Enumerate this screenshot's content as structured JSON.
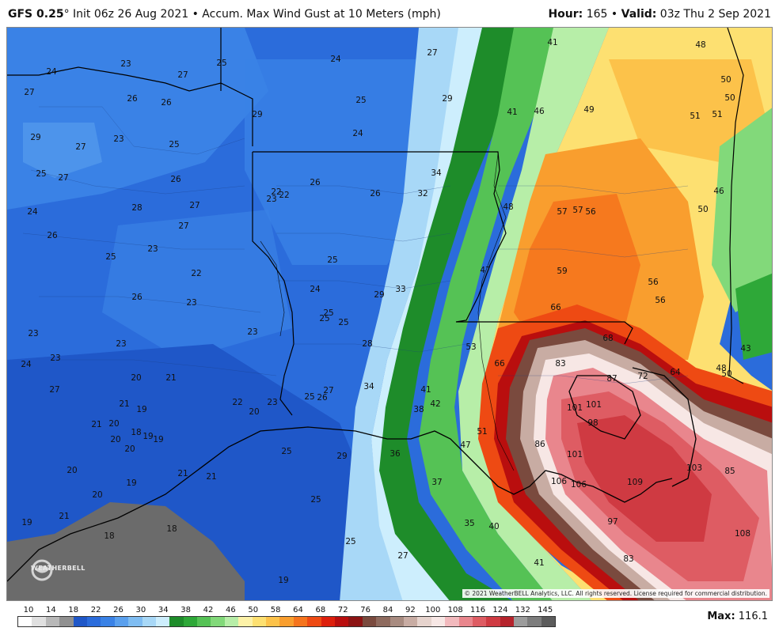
{
  "header": {
    "model": "GFS 0.25",
    "degree": "°",
    "description": " Init 06z 26 Aug 2021 • Accum. Max Wind Gust at 10 Meters (mph)",
    "hour_label": "Hour:",
    "hour_value": " 165 • ",
    "valid_label": "Valid:",
    "valid_value": " 03z Thu 2 Sep 2021"
  },
  "copyright": "© 2021 WeatherBELL Analytics, LLC. All rights reserved. License required for commercial distribution.",
  "logo_text": "WEATHERBELL",
  "max": {
    "label": "Max:",
    "value": "116.1"
  },
  "legend": {
    "labels": [
      "10",
      "14",
      "18",
      "22",
      "26",
      "30",
      "34",
      "38",
      "42",
      "46",
      "50",
      "58",
      "64",
      "68",
      "72",
      "76",
      "84",
      "92",
      "100",
      "108",
      "116",
      "124",
      "132",
      "145"
    ],
    "colors": [
      "#ffffff",
      "#e0e0e0",
      "#b8b8b8",
      "#909090",
      "#1f57c8",
      "#2b6cdb",
      "#3a82e6",
      "#5aa0ee",
      "#7fbdf2",
      "#a8d8f7",
      "#cdeefd",
      "#1e8c2a",
      "#2ea838",
      "#55c255",
      "#82d97a",
      "#b7eea8",
      "#fdf2a8",
      "#fde071",
      "#fcc24a",
      "#f99e2e",
      "#f5741d",
      "#ee4a13",
      "#dd1f0c",
      "#b90e0e",
      "#8c1414",
      "#7a4a3e",
      "#8e6a5e",
      "#a88b80",
      "#c8aca3",
      "#e6d3cd",
      "#f7e7e5",
      "#f2b9bd",
      "#e9868d",
      "#de5c63",
      "#cf3a42",
      "#b5232c",
      "#9c9c9c",
      "#7d7d7d",
      "#5c5c5c"
    ]
  },
  "map": {
    "values": [
      {
        "v": "24"
      },
      {
        "v": "23"
      },
      {
        "v": "27"
      },
      {
        "v": "25"
      },
      {
        "v": "24"
      },
      {
        "v": "27"
      },
      {
        "v": "41"
      },
      {
        "v": "48"
      },
      {
        "v": "27"
      },
      {
        "v": "26"
      },
      {
        "v": "26"
      },
      {
        "v": "29"
      },
      {
        "v": "25"
      },
      {
        "v": "29"
      },
      {
        "v": "50"
      },
      {
        "v": "50"
      },
      {
        "v": "41"
      },
      {
        "v": "46"
      },
      {
        "v": "49"
      },
      {
        "v": "51"
      },
      {
        "v": "51"
      },
      {
        "v": "29"
      },
      {
        "v": "27"
      },
      {
        "v": "23"
      },
      {
        "v": "25"
      },
      {
        "v": "24"
      },
      {
        "v": "25"
      },
      {
        "v": "27"
      },
      {
        "v": "26"
      },
      {
        "v": "34"
      },
      {
        "v": "22"
      },
      {
        "v": "22"
      },
      {
        "v": "26"
      },
      {
        "v": "26"
      },
      {
        "v": "32"
      },
      {
        "v": "23"
      },
      {
        "v": "46"
      },
      {
        "v": "24"
      },
      {
        "v": "28"
      },
      {
        "v": "27"
      },
      {
        "v": "48"
      },
      {
        "v": "57"
      },
      {
        "v": "57"
      },
      {
        "v": "56"
      },
      {
        "v": "50"
      },
      {
        "v": "26"
      },
      {
        "v": "27"
      },
      {
        "v": "25"
      },
      {
        "v": "23"
      },
      {
        "v": "25"
      },
      {
        "v": "47"
      },
      {
        "v": "59"
      },
      {
        "v": "22"
      },
      {
        "v": "56"
      },
      {
        "v": "26"
      },
      {
        "v": "24"
      },
      {
        "v": "29"
      },
      {
        "v": "33"
      },
      {
        "v": "23"
      },
      {
        "v": "56"
      },
      {
        "v": "25"
      },
      {
        "v": "25"
      },
      {
        "v": "66"
      },
      {
        "v": "23"
      },
      {
        "v": "23"
      },
      {
        "v": "25"
      },
      {
        "v": "68"
      },
      {
        "v": "23"
      },
      {
        "v": "28"
      },
      {
        "v": "53"
      },
      {
        "v": "43"
      },
      {
        "v": "24"
      },
      {
        "v": "23"
      },
      {
        "v": "66"
      },
      {
        "v": "83"
      },
      {
        "v": "48"
      },
      {
        "v": "20"
      },
      {
        "v": "21"
      },
      {
        "v": "87"
      },
      {
        "v": "72"
      },
      {
        "v": "64"
      },
      {
        "v": "50"
      },
      {
        "v": "27"
      },
      {
        "v": "34"
      },
      {
        "v": "41"
      },
      {
        "v": "27"
      },
      {
        "v": "26"
      },
      {
        "v": "25"
      },
      {
        "v": "21"
      },
      {
        "v": "22"
      },
      {
        "v": "23"
      },
      {
        "v": "42"
      },
      {
        "v": "19"
      },
      {
        "v": "20"
      },
      {
        "v": "38"
      },
      {
        "v": "101"
      },
      {
        "v": "101"
      },
      {
        "v": "21"
      },
      {
        "v": "20"
      },
      {
        "v": "18"
      },
      {
        "v": "19"
      },
      {
        "v": "98"
      },
      {
        "v": "20"
      },
      {
        "v": "19"
      },
      {
        "v": "51"
      },
      {
        "v": "20"
      },
      {
        "v": "47"
      },
      {
        "v": "86"
      },
      {
        "v": "25"
      },
      {
        "v": "29"
      },
      {
        "v": "36"
      },
      {
        "v": "101"
      },
      {
        "v": "20"
      },
      {
        "v": "21"
      },
      {
        "v": "21"
      },
      {
        "v": "106"
      },
      {
        "v": "103"
      },
      {
        "v": "85"
      },
      {
        "v": "19"
      },
      {
        "v": "20"
      },
      {
        "v": "37"
      },
      {
        "v": "106"
      },
      {
        "v": "109"
      },
      {
        "v": "25"
      },
      {
        "v": "19"
      },
      {
        "v": "21"
      },
      {
        "v": "35"
      },
      {
        "v": "40"
      },
      {
        "v": "97"
      },
      {
        "v": "18"
      },
      {
        "v": "18"
      },
      {
        "v": "108"
      },
      {
        "v": "25"
      },
      {
        "v": "27"
      },
      {
        "v": "41"
      },
      {
        "v": "83"
      },
      {
        "v": "19"
      }
    ]
  }
}
